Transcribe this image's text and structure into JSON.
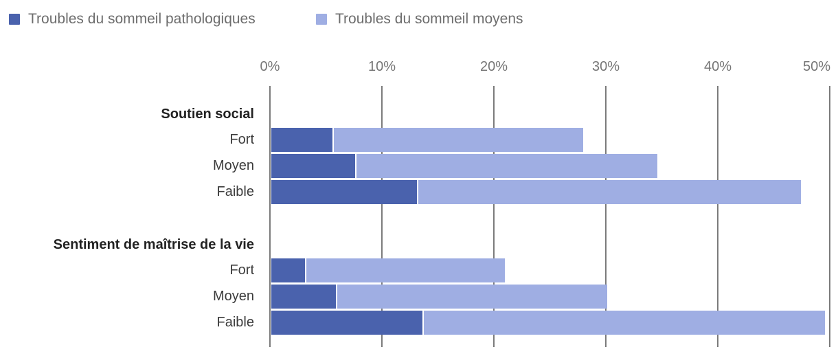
{
  "legend": {
    "items": [
      {
        "label": "Troubles du sommeil pathologiques",
        "color": "#4a62ad"
      },
      {
        "label": "Troubles du sommeil moyens",
        "color": "#9faee3"
      }
    ]
  },
  "axis": {
    "min": 0,
    "max": 50,
    "unit": "%",
    "tick_labels": [
      "0%",
      "10%",
      "20%",
      "30%",
      "40%",
      "50%"
    ]
  },
  "groups": [
    {
      "header": "Soutien social",
      "rows": [
        {
          "label": "Fort",
          "pathologiques": 5.6,
          "moyens": 22.4,
          "total": 28.0
        },
        {
          "label": "Moyen",
          "pathologiques": 7.6,
          "moyens": 27.0,
          "total": 34.6
        },
        {
          "label": "Faible",
          "pathologiques": 13.1,
          "moyens": 34.3,
          "total": 47.4
        }
      ]
    },
    {
      "header": "Sentiment de maîtrise de la vie",
      "rows": [
        {
          "label": "Fort",
          "pathologiques": 3.1,
          "moyens": 17.9,
          "total": 21.0
        },
        {
          "label": "Moyen",
          "pathologiques": 5.9,
          "moyens": 24.2,
          "total": 30.1
        },
        {
          "label": "Faible",
          "pathologiques": 13.6,
          "moyens": 36.0,
          "total": 49.6
        }
      ]
    }
  ],
  "chart_data": {
    "type": "bar",
    "orientation": "horizontal",
    "stacked": true,
    "unit": "%",
    "legend_position": "top-left",
    "x_axis": {
      "min": 0,
      "max": 50,
      "tick_labels": [
        "0%",
        "10%",
        "20%",
        "30%",
        "40%",
        "50%"
      ],
      "grid": true
    },
    "categories": [
      "Soutien social - Fort",
      "Soutien social - Moyen",
      "Soutien social - Faible",
      "Sentiment de maîtrise de la vie - Fort",
      "Sentiment de maîtrise de la vie - Moyen",
      "Sentiment de maîtrise de la vie - Faible"
    ],
    "series": [
      {
        "name": "Troubles du sommeil pathologiques",
        "color": "#4a62ad",
        "values": [
          5.6,
          7.6,
          13.1,
          3.1,
          5.9,
          13.6
        ]
      },
      {
        "name": "Troubles du sommeil moyens",
        "color": "#9faee3",
        "values": [
          22.4,
          27.0,
          34.3,
          17.9,
          24.2,
          36.0
        ]
      }
    ],
    "stack_totals": [
      28.0,
      34.6,
      47.4,
      21.0,
      30.1,
      49.6
    ]
  }
}
